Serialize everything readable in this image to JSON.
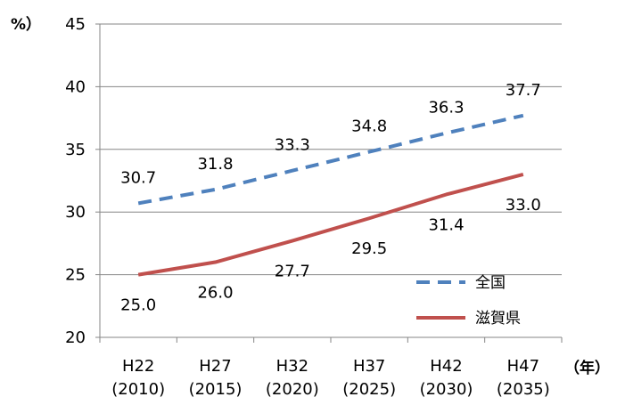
{
  "chart_data": {
    "type": "line",
    "title": "",
    "xlabel": "",
    "ylabel": "",
    "y_unit_label": "%）",
    "x_unit_label": "（年）",
    "categories": [
      [
        "H22",
        "(2010)"
      ],
      [
        "H27",
        "(2015)"
      ],
      [
        "H32",
        "(2020)"
      ],
      [
        "H37",
        "(2025)"
      ],
      [
        "H42",
        "(2030)"
      ],
      [
        "H47",
        "(2035)"
      ]
    ],
    "ylim": [
      20,
      45
    ],
    "yticks": [
      20,
      25,
      30,
      35,
      40,
      45
    ],
    "grid": "horizontal",
    "legend_position": "bottom-right",
    "series": [
      {
        "name": "全国",
        "values": [
          30.7,
          31.8,
          33.3,
          34.8,
          36.3,
          37.7
        ],
        "labels": [
          "30.7",
          "31.8",
          "33.3",
          "34.8",
          "36.3",
          "37.7"
        ],
        "label_placement": "above",
        "color": "#4f81bd",
        "style": "dashed"
      },
      {
        "name": "滋賀県",
        "values": [
          25.0,
          26.0,
          27.7,
          29.5,
          31.4,
          33.0
        ],
        "labels": [
          "25.0",
          "26.0",
          "27.7",
          "29.5",
          "31.4",
          "33.0"
        ],
        "label_placement": "below",
        "color": "#c0504d",
        "style": "solid"
      }
    ]
  }
}
